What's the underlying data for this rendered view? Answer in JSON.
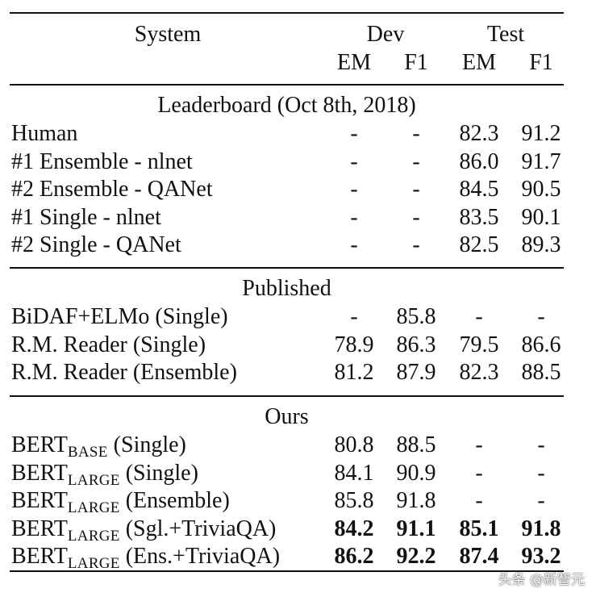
{
  "header": {
    "system": "System",
    "dev": "Dev",
    "test": "Test",
    "em": "EM",
    "f1": "F1"
  },
  "sections": [
    {
      "title": "Leaderboard (Oct 8th, 2018)",
      "rows": [
        {
          "name": "Human",
          "dev_em": "-",
          "dev_f1": "-",
          "test_em": "82.3",
          "test_f1": "91.2"
        },
        {
          "name": "#1 Ensemble - nlnet",
          "dev_em": "-",
          "dev_f1": "-",
          "test_em": "86.0",
          "test_f1": "91.7"
        },
        {
          "name": "#2 Ensemble - QANet",
          "dev_em": "-",
          "dev_f1": "-",
          "test_em": "84.5",
          "test_f1": "90.5"
        },
        {
          "name": "#1 Single - nlnet",
          "dev_em": "-",
          "dev_f1": "-",
          "test_em": "83.5",
          "test_f1": "90.1"
        },
        {
          "name": "#2 Single - QANet",
          "dev_em": "-",
          "dev_f1": "-",
          "test_em": "82.5",
          "test_f1": "89.3"
        }
      ]
    },
    {
      "title": "Published",
      "rows": [
        {
          "name": "BiDAF+ELMo (Single)",
          "dev_em": "-",
          "dev_f1": "85.8",
          "test_em": "-",
          "test_f1": "-"
        },
        {
          "name": "R.M. Reader (Single)",
          "dev_em": "78.9",
          "dev_f1": "86.3",
          "test_em": "79.5",
          "test_f1": "86.6"
        },
        {
          "name": "R.M. Reader (Ensemble)",
          "dev_em": "81.2",
          "dev_f1": "87.9",
          "test_em": "82.3",
          "test_f1": "88.5"
        }
      ]
    },
    {
      "title": "Ours",
      "rows": [
        {
          "name": "BERT",
          "sub": "BASE",
          "suffix": " (Single)",
          "dev_em": "80.8",
          "dev_f1": "88.5",
          "test_em": "-",
          "test_f1": "-"
        },
        {
          "name": "BERT",
          "sub": "LARGE",
          "suffix": " (Single)",
          "dev_em": "84.1",
          "dev_f1": "90.9",
          "test_em": "-",
          "test_f1": "-"
        },
        {
          "name": "BERT",
          "sub": "LARGE",
          "suffix": " (Ensemble)",
          "dev_em": "85.8",
          "dev_f1": "91.8",
          "test_em": "-",
          "test_f1": "-"
        },
        {
          "name": "BERT",
          "sub": "LARGE",
          "suffix": " (Sgl.+TriviaQA)",
          "dev_em": "84.2",
          "dev_f1": "91.1",
          "test_em": "85.1",
          "test_f1": "91.8",
          "bold": true
        },
        {
          "name": "BERT",
          "sub": "LARGE",
          "suffix": " (Ens.+TriviaQA)",
          "dev_em": "86.2",
          "dev_f1": "92.2",
          "test_em": "87.4",
          "test_f1": "93.2",
          "bold": true
        }
      ]
    }
  ],
  "watermark": "头条 @新智元"
}
